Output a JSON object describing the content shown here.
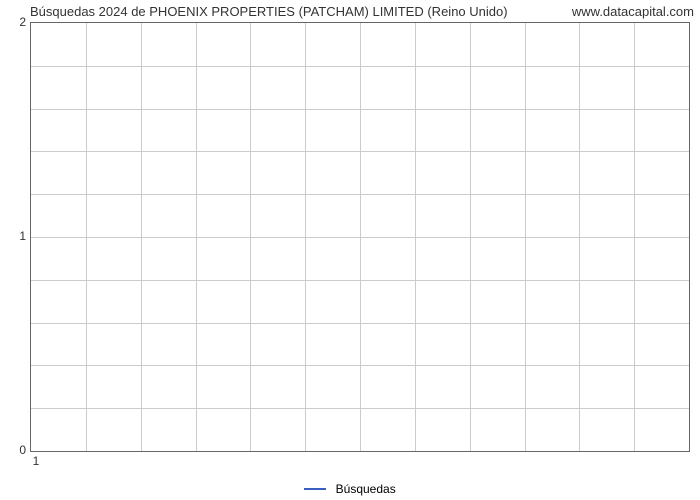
{
  "chart": {
    "type": "line",
    "title_left": "Búsquedas 2024 de PHOENIX PROPERTIES (PATCHAM) LIMITED (Reino Unido)",
    "title_right": "www.datacapital.com",
    "title_fontsize": 13,
    "background_color": "#ffffff",
    "border_color": "#666666",
    "grid_color": "#cccccc",
    "ylim": [
      0,
      2
    ],
    "ytick_major": [
      0,
      1,
      2
    ],
    "ytick_minor_count": 4,
    "y_total_rows": 10,
    "xlim": [
      1,
      12
    ],
    "xtick_labels": [
      "1"
    ],
    "x_total_cols": 12,
    "label_fontsize": 12,
    "series": [
      {
        "name": "Búsquedas",
        "color": "#3b5fc0",
        "line_width": 2,
        "data": []
      }
    ],
    "legend_position": "bottom-center"
  }
}
